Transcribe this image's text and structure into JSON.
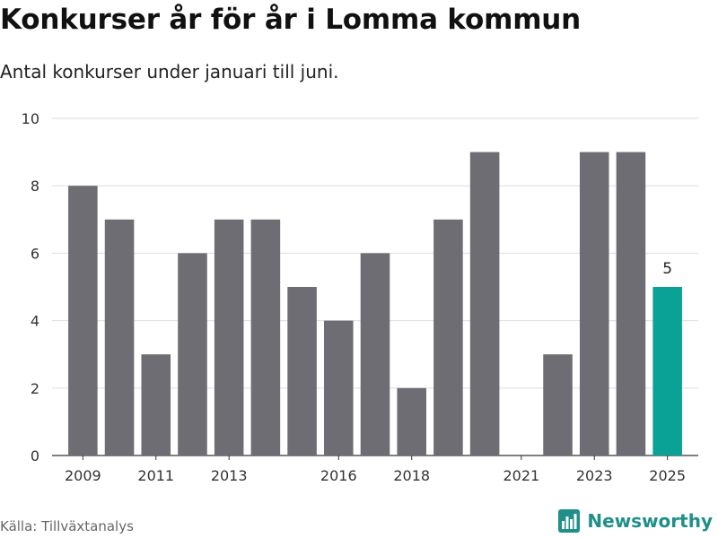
{
  "title": "Konkurser år för år i Lomma kommun",
  "subtitle": "Antal konkurser under januari till juni.",
  "source": "Källa: Tillväxtanalys",
  "brand": {
    "name": "Newsworthy",
    "icon": "bar-chart-logo-icon",
    "color": "#1f8f8a"
  },
  "chart_data": {
    "type": "bar",
    "categories": [
      "2009",
      "2010",
      "2011",
      "2012",
      "2013",
      "2014",
      "2015",
      "2016",
      "2017",
      "2018",
      "2019",
      "2020",
      "2021",
      "2022",
      "2023",
      "2024",
      "2025"
    ],
    "values": [
      8,
      7,
      3,
      6,
      7,
      7,
      5,
      4,
      6,
      2,
      7,
      9,
      0,
      3,
      9,
      9,
      5
    ],
    "x_tick_labels": [
      "2009",
      "2011",
      "2013",
      "2016",
      "2018",
      "2021",
      "2023",
      "2025"
    ],
    "y_ticks": [
      0,
      2,
      4,
      6,
      8,
      10
    ],
    "ylim": [
      0,
      10
    ],
    "grid": true,
    "bar_color": "#6e6d73",
    "highlight_color": "#0aa197",
    "highlight_category": "2025",
    "value_labels": [
      {
        "category": "2025",
        "text": "5"
      }
    ]
  }
}
